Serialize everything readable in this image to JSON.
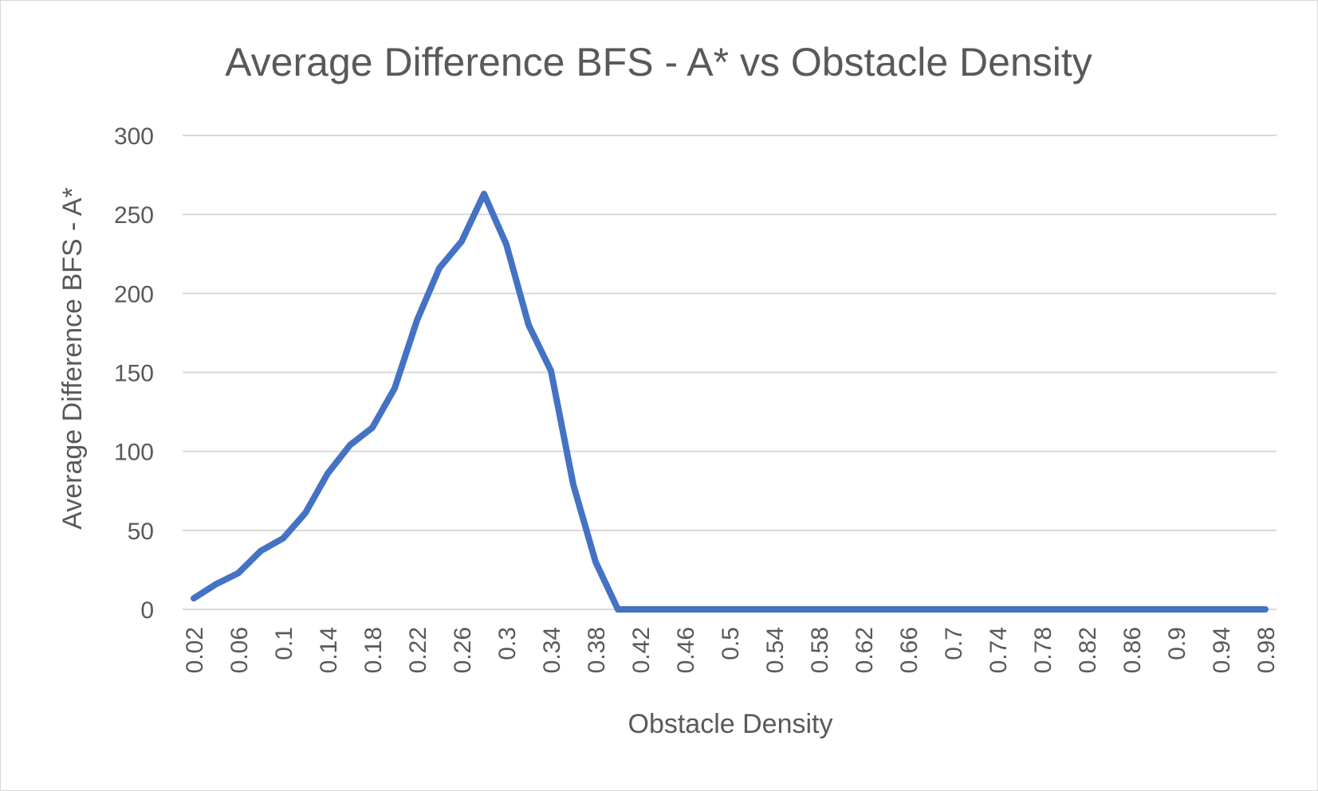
{
  "chart_data": {
    "type": "line",
    "title": "Average Difference BFS - A* vs Obstacle Density",
    "xlabel": "Obstacle Density",
    "ylabel": "Average Difference BFS - A*",
    "ylim": [
      0,
      300
    ],
    "yticks": [
      "0",
      "50",
      "100",
      "150",
      "200",
      "250",
      "300"
    ],
    "x": [
      "0.02",
      "0.04",
      "0.06",
      "0.08",
      "0.1",
      "0.12",
      "0.14",
      "0.16",
      "0.18",
      "0.2",
      "0.22",
      "0.24",
      "0.26",
      "0.28",
      "0.3",
      "0.32",
      "0.34",
      "0.36",
      "0.38",
      "0.4",
      "0.42",
      "0.44",
      "0.46",
      "0.48",
      "0.5",
      "0.52",
      "0.54",
      "0.56",
      "0.58",
      "0.6",
      "0.62",
      "0.64",
      "0.66",
      "0.68",
      "0.7",
      "0.72",
      "0.74",
      "0.76",
      "0.78",
      "0.8",
      "0.82",
      "0.84",
      "0.86",
      "0.88",
      "0.9",
      "0.92",
      "0.94",
      "0.96",
      "0.98"
    ],
    "xtick_labels": [
      "0.02",
      "0.06",
      "0.1",
      "0.14",
      "0.18",
      "0.22",
      "0.26",
      "0.3",
      "0.34",
      "0.38",
      "0.42",
      "0.46",
      "0.5",
      "0.54",
      "0.58",
      "0.62",
      "0.66",
      "0.7",
      "0.74",
      "0.78",
      "0.82",
      "0.86",
      "0.9",
      "0.94",
      "0.98"
    ],
    "series": [
      {
        "values": [
          7,
          16,
          23,
          37,
          45,
          61,
          86,
          104,
          115,
          140,
          183,
          216,
          233,
          263,
          231,
          180,
          151,
          79,
          30,
          0,
          0,
          0,
          0,
          0,
          0,
          0,
          0,
          0,
          0,
          0,
          0,
          0,
          0,
          0,
          0,
          0,
          0,
          0,
          0,
          0,
          0,
          0,
          0,
          0,
          0,
          0,
          0,
          0,
          0
        ]
      }
    ],
    "grid": true,
    "legend": "none",
    "colors": {
      "series": "#4472c4",
      "grid": "#d9d9d9",
      "text": "#595959"
    }
  }
}
